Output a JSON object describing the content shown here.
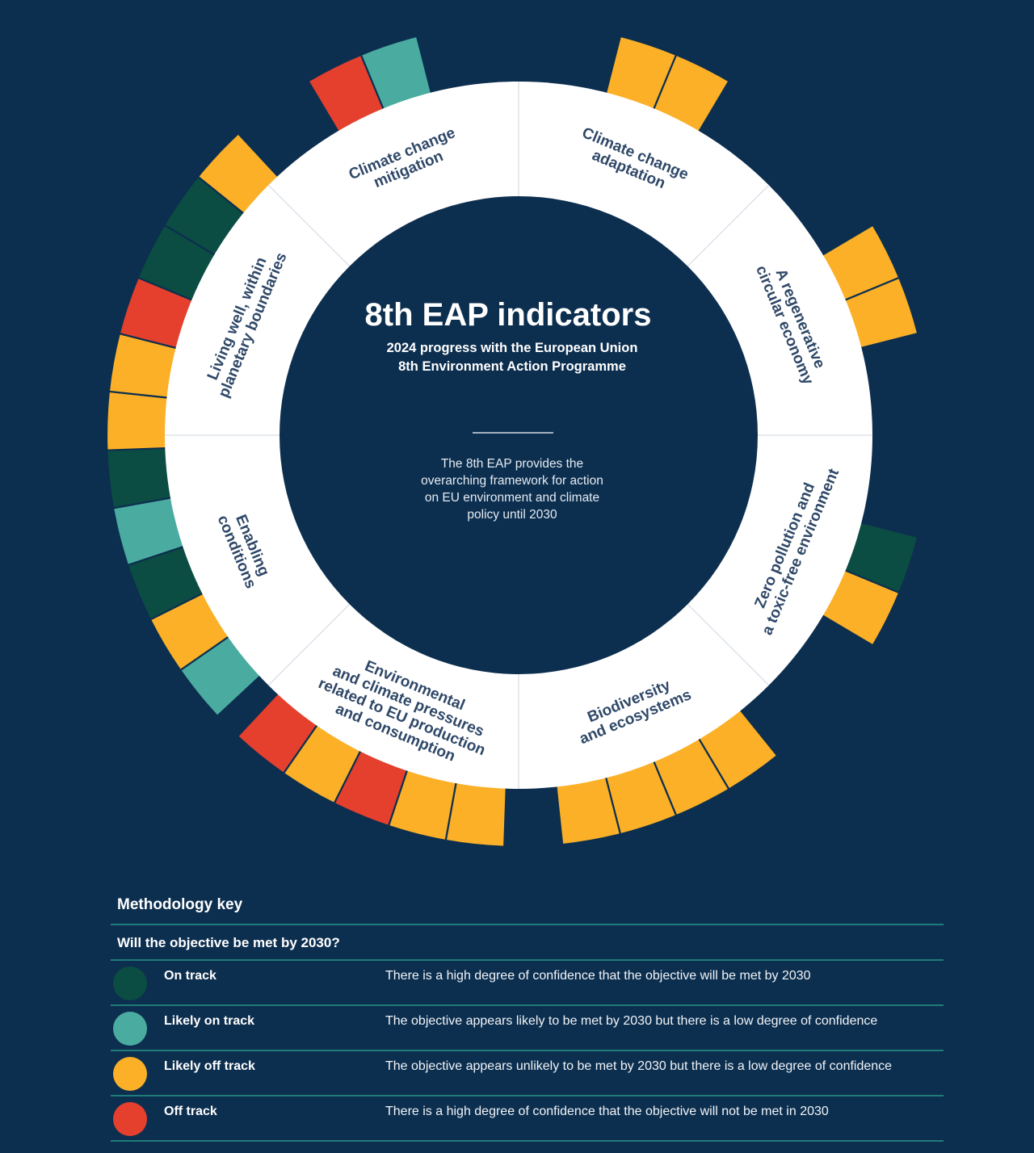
{
  "center": {
    "title": "8th EAP indicators",
    "subtitle_line1": "2024 progress with the European Union",
    "subtitle_line2": "8th Environment Action Programme",
    "desc_line1": "The 8th EAP provides the",
    "desc_line2": "overarching framework for action",
    "desc_line3": "on EU environment and climate",
    "desc_line4": "policy until 2030"
  },
  "colors": {
    "background": "#0d2f4f",
    "on_track": "#0b4d42",
    "likely_on_track": "#4aaca0",
    "likely_off_track": "#fbb027",
    "off_track": "#e5402e",
    "ring": "#ffffff",
    "label_text": "#2f4868"
  },
  "objectives": [
    {
      "name": "Climate change adaptation",
      "lines": [
        "Climate change",
        "adaptation"
      ],
      "indicators": [
        "likely_off_track",
        "likely_off_track"
      ]
    },
    {
      "name": "A regenerative circular economy",
      "lines": [
        "A regenerative",
        "circular economy"
      ],
      "indicators": [
        "likely_off_track",
        "likely_off_track"
      ]
    },
    {
      "name": "Zero pollution and a toxic-free environment",
      "lines": [
        "Zero pollution and",
        "a toxic-free environment"
      ],
      "indicators": [
        "on_track",
        "likely_off_track"
      ]
    },
    {
      "name": "Biodiversity and ecosystems",
      "lines": [
        "Biodiversity",
        "and ecosystems"
      ],
      "indicators": [
        "likely_off_track",
        "likely_off_track",
        "likely_off_track",
        "likely_off_track"
      ]
    },
    {
      "name": "Environmental and climate pressures related to EU production and consumption",
      "lines": [
        "Environmental",
        "and climate pressures",
        "related to EU production",
        "and consumption"
      ],
      "indicators": [
        "likely_off_track",
        "likely_off_track",
        "off_track",
        "likely_off_track",
        "off_track"
      ]
    },
    {
      "name": "Enabling conditions",
      "lines": [
        "Enabling",
        "conditions"
      ],
      "indicators": [
        "likely_on_track",
        "likely_off_track",
        "on_track",
        "likely_on_track",
        "on_track"
      ]
    },
    {
      "name": "Living well, within planetary boundaries",
      "lines": [
        "Living well, within",
        "planetary boundaries"
      ],
      "indicators": [
        "likely_off_track",
        "likely_off_track",
        "off_track",
        "on_track",
        "on_track",
        "likely_off_track"
      ]
    },
    {
      "name": "Climate change mitigation",
      "lines": [
        "Climate change",
        "mitigation"
      ],
      "indicators": [
        "off_track",
        "likely_on_track"
      ]
    }
  ],
  "key": {
    "title": "Methodology key",
    "question": "Will the objective be met by 2030?",
    "rows": [
      {
        "status": "on_track",
        "label": "On track",
        "desc": "There is a high degree of confidence that the objective will be met by 2030"
      },
      {
        "status": "likely_on_track",
        "label": "Likely on track",
        "desc": "The objective appears likely to be met by 2030 but there is a low degree of confidence"
      },
      {
        "status": "likely_off_track",
        "label": "Likely off track",
        "desc": "The objective appears unlikely to be met by 2030 but there is a low degree of confidence"
      },
      {
        "status": "off_track",
        "label": "Off track",
        "desc": "There is a high degree of confidence that the objective will not be met in 2030"
      }
    ]
  }
}
